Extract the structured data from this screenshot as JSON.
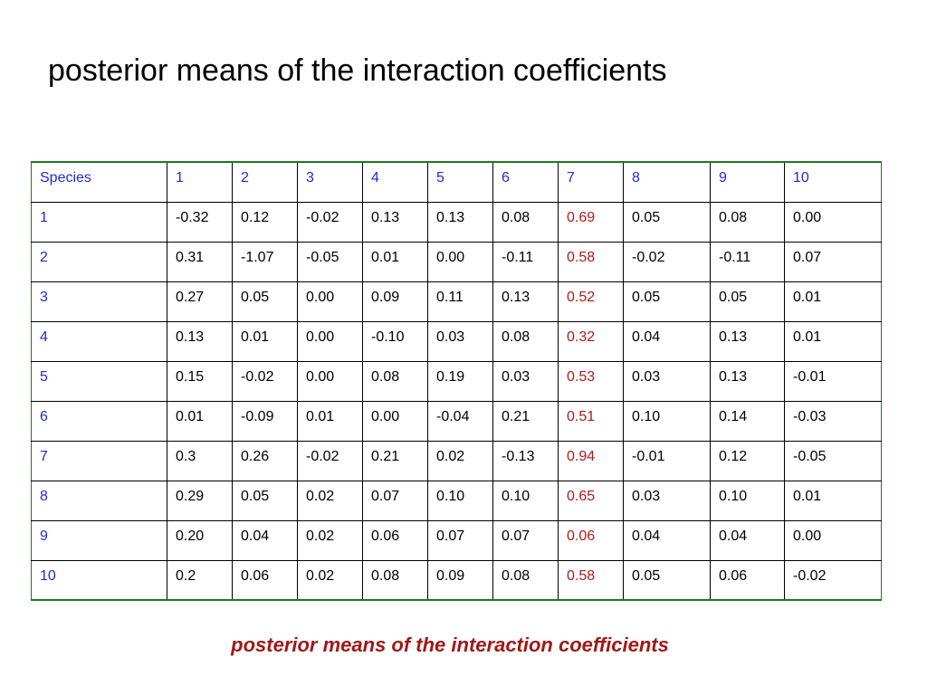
{
  "title": "posterior means of the interaction coefficients",
  "caption": "posterior means of the interaction coefficients",
  "colors": {
    "header_text": "#1f2bd0",
    "highlight_text": "#b01a1a",
    "table_border": "#1a7a1a",
    "caption_text": "#a01818"
  },
  "table": {
    "header": [
      "Species",
      "1",
      "2",
      "3",
      "4",
      "5",
      "6",
      "7",
      "8",
      "9",
      "10"
    ],
    "highlight_column_index": 7,
    "rows": [
      {
        "label": "1",
        "values": [
          "-0.32",
          "0.12",
          "-0.02",
          "0.13",
          "0.13",
          "0.08",
          "0.69",
          "0.05",
          "0.08",
          "0.00"
        ]
      },
      {
        "label": "2",
        "values": [
          "0.31",
          "-1.07",
          "-0.05",
          "0.01",
          "0.00",
          "-0.11",
          "0.58",
          "-0.02",
          "-0.11",
          "0.07"
        ]
      },
      {
        "label": "3",
        "values": [
          "0.27",
          "0.05",
          "0.00",
          "0.09",
          "0.11",
          "0.13",
          "0.52",
          "0.05",
          "0.05",
          "0.01"
        ]
      },
      {
        "label": "4",
        "values": [
          "0.13",
          "0.01",
          "0.00",
          "-0.10",
          "0.03",
          "0.08",
          "0.32",
          "0.04",
          "0.13",
          "0.01"
        ]
      },
      {
        "label": "5",
        "values": [
          "0.15",
          "-0.02",
          "0.00",
          "0.08",
          "0.19",
          "0.03",
          "0.53",
          "0.03",
          "0.13",
          "-0.01"
        ]
      },
      {
        "label": "6",
        "values": [
          "0.01",
          "-0.09",
          "0.01",
          "0.00",
          "-0.04",
          "0.21",
          "0.51",
          "0.10",
          "0.14",
          "-0.03"
        ]
      },
      {
        "label": "7",
        "values": [
          "0.3",
          "0.26",
          "-0.02",
          "0.21",
          "0.02",
          "-0.13",
          "0.94",
          "-0.01",
          "0.12",
          "-0.05"
        ]
      },
      {
        "label": "8",
        "values": [
          "0.29",
          "0.05",
          "0.02",
          "0.07",
          "0.10",
          "0.10",
          "0.65",
          "0.03",
          "0.10",
          "0.01"
        ]
      },
      {
        "label": "9",
        "values": [
          "0.20",
          "0.04",
          "0.02",
          "0.06",
          "0.07",
          "0.07",
          "0.06",
          "0.04",
          "0.04",
          "0.00"
        ]
      },
      {
        "label": "10",
        "values": [
          "0.2",
          "0.06",
          "0.02",
          "0.08",
          "0.09",
          "0.08",
          "0.58",
          "0.05",
          "0.06",
          "-0.02"
        ]
      }
    ]
  }
}
